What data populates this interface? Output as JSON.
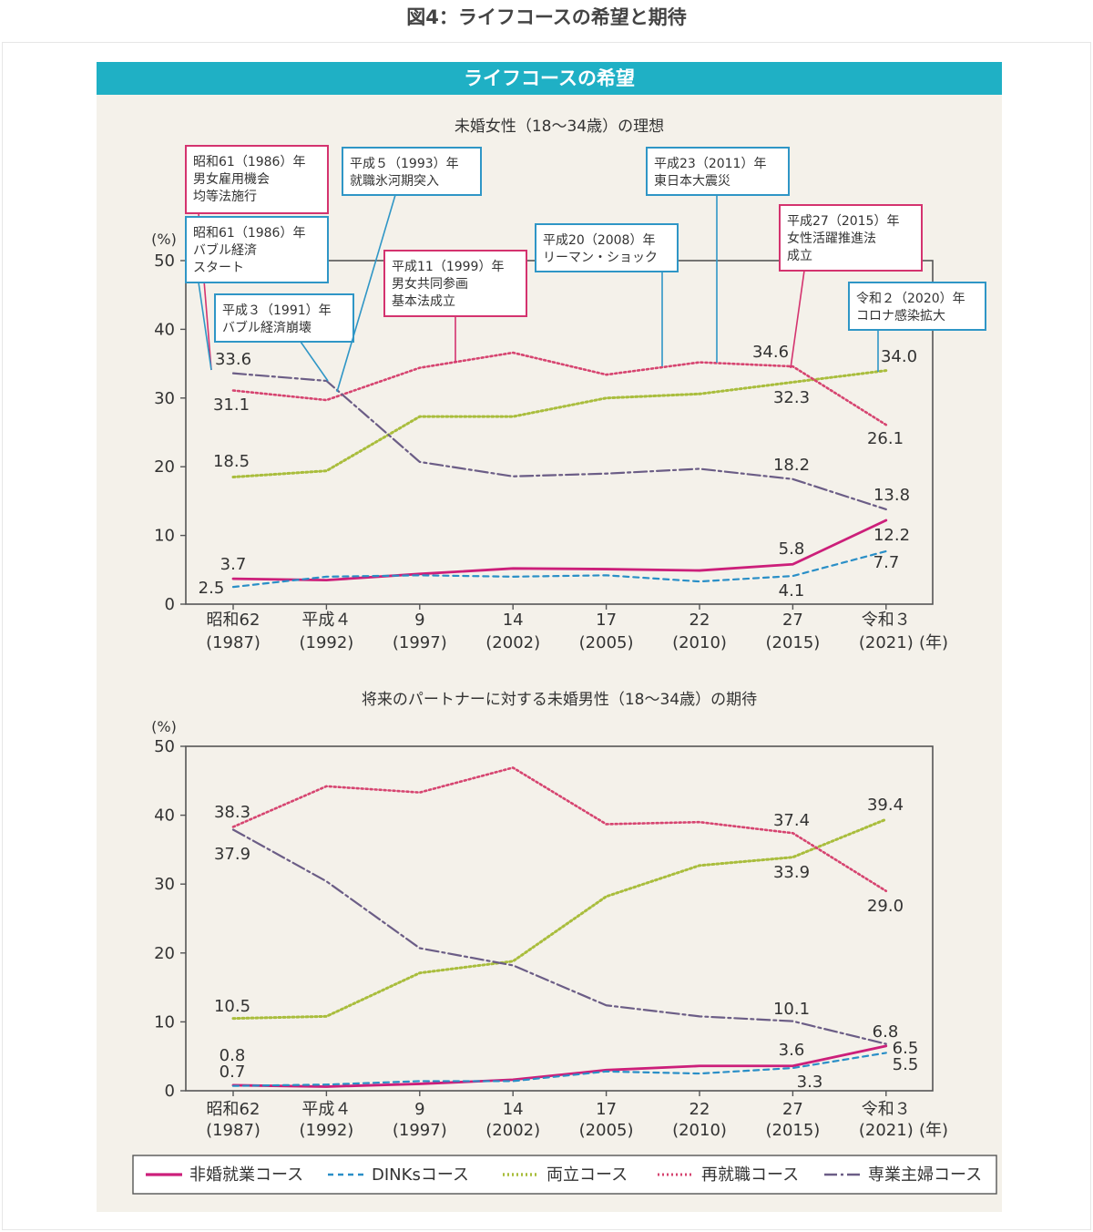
{
  "page_title": "図4：ライフコースの希望と期待",
  "banner_title": "ライフコースの希望",
  "legend": [
    "非婚就業コース",
    "DINKsコース",
    "両立コース",
    "再就職コース",
    "専業主婦コース"
  ],
  "colors": {
    "非婚就業コース": "#cc1f7a",
    "DINKsコース": "#2a8fc7",
    "両立コース": "#a9bd3c",
    "再就職コース": "#d64470",
    "専業主婦コース": "#6b5d86",
    "banner": "#1fb0c5",
    "panel": "#f4f1ea",
    "callout_pink": "#d4336f",
    "callout_blue": "#2f96c6"
  },
  "chart_data": [
    {
      "type": "line",
      "title": "未婚女性（18～34歳）の理想",
      "ylabel": "(%)",
      "ylim": [
        0,
        50
      ],
      "yticks": [
        "0",
        "10",
        "20",
        "30",
        "40",
        "50"
      ],
      "x_labels": [
        [
          "昭和62",
          "(1987)"
        ],
        [
          "平成４",
          "(1992)"
        ],
        [
          "9",
          "(1997)"
        ],
        [
          "14",
          "(2002)"
        ],
        [
          "17",
          "(2005)"
        ],
        [
          "22",
          "(2010)"
        ],
        [
          "27",
          "(2015)"
        ],
        [
          "令和３",
          "(2021)"
        ]
      ],
      "x_unit": "(年)",
      "series": [
        {
          "name": "非婚就業コース",
          "values": [
            3.7,
            3.5,
            4.4,
            5.2,
            5.1,
            4.9,
            5.8,
            12.2
          ]
        },
        {
          "name": "DINKsコース",
          "values": [
            2.5,
            4.0,
            4.2,
            4.0,
            4.2,
            3.3,
            4.1,
            7.7
          ]
        },
        {
          "name": "両立コース",
          "values": [
            18.5,
            19.4,
            27.3,
            27.3,
            30.0,
            30.6,
            32.3,
            34.0
          ]
        },
        {
          "name": "再就職コース",
          "values": [
            31.1,
            29.7,
            34.4,
            36.6,
            33.4,
            35.2,
            34.6,
            26.1
          ]
        },
        {
          "name": "専業主婦コース",
          "values": [
            33.6,
            32.5,
            20.7,
            18.6,
            19.0,
            19.7,
            18.2,
            13.8
          ]
        }
      ],
      "data_labels": [
        {
          "text": "33.6"
        },
        {
          "text": "31.1"
        },
        {
          "text": "18.5"
        },
        {
          "text": "3.7"
        },
        {
          "text": "2.5"
        },
        {
          "text": "34.6"
        },
        {
          "text": "32.3"
        },
        {
          "text": "18.2"
        },
        {
          "text": "5.8"
        },
        {
          "text": "4.1"
        },
        {
          "text": "34.0"
        },
        {
          "text": "26.1"
        },
        {
          "text": "13.8"
        },
        {
          "text": "12.2"
        },
        {
          "text": "7.7"
        }
      ],
      "annotations": [
        {
          "color": "pink",
          "lines": [
            "昭和61（1986）年",
            "男女雇用機会",
            "均等法施行"
          ]
        },
        {
          "color": "blue",
          "lines": [
            "昭和61（1986）年",
            "バブル経済",
            "スタート"
          ]
        },
        {
          "color": "blue",
          "lines": [
            "平成３（1991）年",
            "バブル経済崩壊"
          ]
        },
        {
          "color": "blue",
          "lines": [
            "平成５（1993）年",
            "就職氷河期突入"
          ]
        },
        {
          "color": "pink",
          "lines": [
            "平成11（1999）年",
            "男女共同参画",
            "基本法成立"
          ]
        },
        {
          "color": "blue",
          "lines": [
            "平成20（2008）年",
            "リーマン・ショック"
          ]
        },
        {
          "color": "blue",
          "lines": [
            "平成23（2011）年",
            "東日本大震災"
          ]
        },
        {
          "color": "pink",
          "lines": [
            "平成27（2015）年",
            "女性活躍推進法",
            "成立"
          ]
        },
        {
          "color": "blue",
          "lines": [
            "令和２（2020）年",
            "コロナ感染拡大"
          ]
        }
      ]
    },
    {
      "type": "line",
      "title": "将来のパートナーに対する未婚男性（18～34歳）の期待",
      "ylabel": "(%)",
      "ylim": [
        0,
        50
      ],
      "yticks": [
        "0",
        "10",
        "20",
        "30",
        "40",
        "50"
      ],
      "x_labels": [
        [
          "昭和62",
          "(1987)"
        ],
        [
          "平成４",
          "(1992)"
        ],
        [
          "9",
          "(1997)"
        ],
        [
          "14",
          "(2002)"
        ],
        [
          "17",
          "(2005)"
        ],
        [
          "22",
          "(2010)"
        ],
        [
          "27",
          "(2015)"
        ],
        [
          "令和３",
          "(2021)"
        ]
      ],
      "x_unit": "(年)",
      "series": [
        {
          "name": "非婚就業コース",
          "values": [
            0.8,
            0.6,
            1.0,
            1.6,
            3.0,
            3.6,
            3.6,
            6.5
          ]
        },
        {
          "name": "DINKsコース",
          "values": [
            0.7,
            0.9,
            1.4,
            1.4,
            2.8,
            2.5,
            3.3,
            5.5
          ]
        },
        {
          "name": "両立コース",
          "values": [
            10.5,
            10.8,
            17.1,
            18.8,
            28.2,
            32.7,
            33.9,
            39.4
          ]
        },
        {
          "name": "再就職コース",
          "values": [
            38.3,
            44.2,
            43.3,
            46.9,
            38.7,
            39.0,
            37.4,
            29.0
          ]
        },
        {
          "name": "専業主婦コース",
          "values": [
            37.9,
            30.4,
            20.7,
            18.2,
            12.4,
            10.8,
            10.1,
            6.8
          ]
        }
      ],
      "data_labels": [
        {
          "text": "38.3"
        },
        {
          "text": "37.9"
        },
        {
          "text": "10.5"
        },
        {
          "text": "0.8"
        },
        {
          "text": "0.7"
        },
        {
          "text": "37.4"
        },
        {
          "text": "33.9"
        },
        {
          "text": "10.1"
        },
        {
          "text": "3.6"
        },
        {
          "text": "3.3"
        },
        {
          "text": "39.4"
        },
        {
          "text": "29.0"
        },
        {
          "text": "6.8"
        },
        {
          "text": "6.5"
        },
        {
          "text": "5.5"
        }
      ]
    }
  ]
}
